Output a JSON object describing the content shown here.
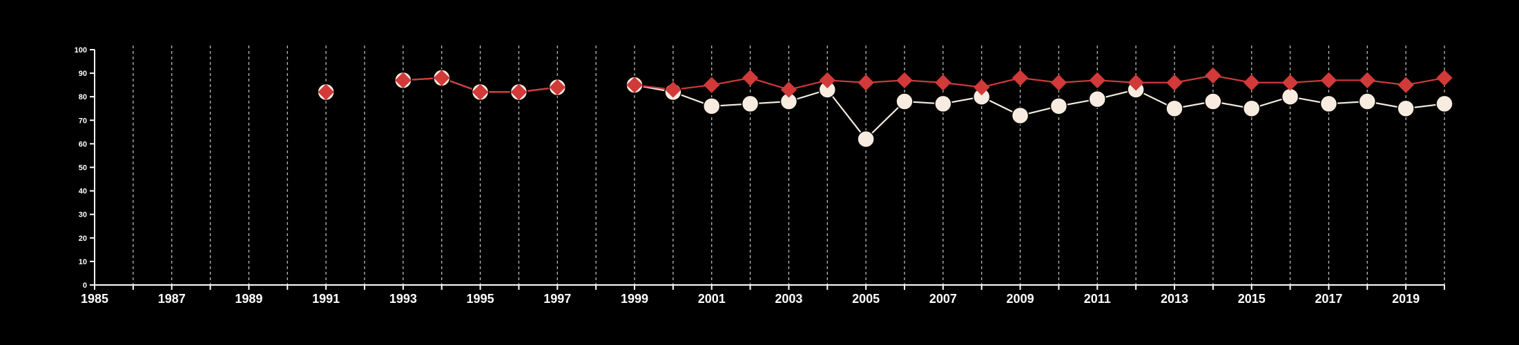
{
  "colors": {
    "background": "#000000",
    "axis": "#ffffff",
    "grid": "#bdbdbd",
    "series_a_line": "#f5ebe0",
    "series_a_marker": "#f8ece0",
    "series_b": "#d23a3a"
  },
  "chart_data": {
    "type": "line",
    "title": "",
    "xlabel": "",
    "ylabel": "",
    "xlim": [
      1985,
      2020
    ],
    "ylim": [
      0,
      100
    ],
    "x_ticks": [
      1985,
      1987,
      1989,
      1991,
      1993,
      1995,
      1997,
      1999,
      2001,
      2003,
      2005,
      2007,
      2009,
      2011,
      2013,
      2015,
      2017,
      2019
    ],
    "y_ticks": [
      0,
      10,
      20,
      30,
      40,
      50,
      60,
      70,
      80,
      90,
      100
    ],
    "grid": "vertical dashed every year",
    "legend": "none",
    "x": [
      1985,
      1986,
      1987,
      1988,
      1989,
      1990,
      1991,
      1992,
      1993,
      1994,
      1995,
      1996,
      1997,
      1998,
      1999,
      2000,
      2001,
      2002,
      2003,
      2004,
      2005,
      2006,
      2007,
      2008,
      2009,
      2010,
      2011,
      2012,
      2013,
      2014,
      2015,
      2016,
      2017,
      2018,
      2019,
      2020
    ],
    "series": [
      {
        "marker": "circle",
        "values": [
          null,
          null,
          null,
          null,
          null,
          null,
          82,
          null,
          87,
          88,
          82,
          82,
          84,
          null,
          85,
          82,
          76,
          77,
          78,
          83,
          62,
          78,
          77,
          80,
          72,
          76,
          79,
          83,
          75,
          78,
          75,
          80,
          77,
          78,
          75,
          77
        ]
      },
      {
        "marker": "diamond",
        "values": [
          null,
          null,
          null,
          null,
          null,
          null,
          82,
          null,
          87,
          88,
          82,
          82,
          84,
          null,
          85,
          83,
          85,
          88,
          83,
          87,
          86,
          87,
          86,
          84,
          88,
          86,
          87,
          86,
          86,
          89,
          86,
          86,
          87,
          87,
          85,
          88
        ]
      }
    ]
  }
}
